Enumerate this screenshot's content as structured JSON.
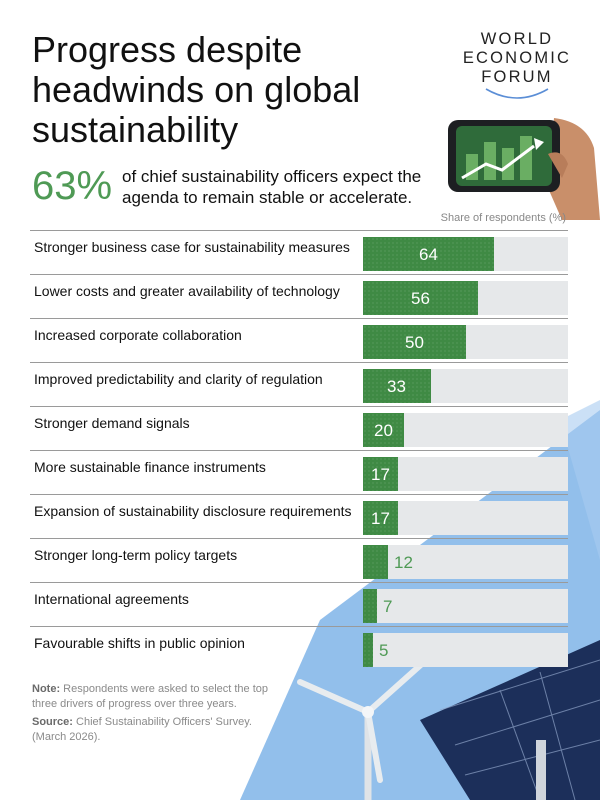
{
  "title": "Progress despite headwinds on global sustainability",
  "logo": {
    "lines": [
      "WORLD",
      "ECONOMIC",
      "FORUM"
    ]
  },
  "highlight": {
    "value": "63%",
    "text": "of chief sustainability officers expect the agenda to remain stable or accelerate."
  },
  "unit_label": "Share of respondents (%)",
  "colors": {
    "bar": "#3f8a44",
    "track": "#e6e8ea",
    "accent_text": "#4f9a55",
    "sky_blue": "#7fb4e8"
  },
  "chart_data": {
    "type": "bar",
    "orientation": "horizontal",
    "categories": [
      "Stronger business case for sustainability measures",
      "Lower costs and greater availability of technology",
      "Increased corporate collaboration",
      "Improved predictability and clarity of regulation",
      "Stronger demand signals",
      "More sustainable finance instruments",
      "Expansion of sustainability disclosure requirements",
      "Stronger long-term policy targets",
      "International agreements",
      "Favourable shifts in public opinion"
    ],
    "values": [
      64,
      56,
      50,
      33,
      20,
      17,
      17,
      12,
      7,
      5
    ],
    "xlim": [
      0,
      100
    ],
    "data_labels": true
  },
  "note": {
    "note_label": "Note:",
    "note_text": "Respondents were asked to select the top three drivers of progress over three years.",
    "source_label": "Source:",
    "source_text": "Chief Sustainability Officers' Survey. (March 2026)."
  }
}
